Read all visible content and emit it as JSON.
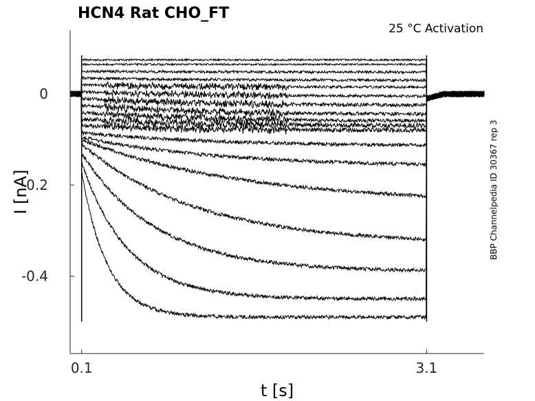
{
  "chart_data": {
    "type": "line",
    "title": "HCN4  Rat  CHO_FT",
    "annotation": "25 °C  Activation",
    "side_label": "BBP Channelpedia ID 30367 rep 3",
    "xlabel": "t [s]",
    "ylabel": "I [nA]",
    "xlim": [
      0.0,
      3.6
    ],
    "ylim": [
      -0.57,
      0.14
    ],
    "x_ticks": [
      "0.1",
      "3.1"
    ],
    "x_tick_values": [
      0.1,
      3.1
    ],
    "y_ticks": [
      "0",
      "-0.2",
      "-0.4"
    ],
    "y_tick_values": [
      0.0,
      -0.2,
      -0.4
    ],
    "grid": false,
    "legend": "none",
    "line_color": "#000000",
    "step_on": 0.1,
    "step_off": 3.1,
    "series": [
      {
        "initial": 0.075,
        "final": 0.075,
        "tau": 1.0,
        "noise": 0.002
      },
      {
        "initial": 0.065,
        "final": 0.065,
        "tau": 1.0,
        "noise": 0.002
      },
      {
        "initial": 0.05,
        "final": 0.048,
        "tau": 1.0,
        "noise": 0.003
      },
      {
        "initial": 0.035,
        "final": 0.03,
        "tau": 1.0,
        "noise": 0.003
      },
      {
        "initial": 0.02,
        "final": 0.015,
        "tau": 1.0,
        "noise": 0.003
      },
      {
        "initial": 0.005,
        "final": -0.005,
        "tau": 1.0,
        "noise": 0.003
      },
      {
        "initial": -0.01,
        "final": -0.025,
        "tau": 1.0,
        "noise": 0.004
      },
      {
        "initial": -0.025,
        "final": -0.045,
        "tau": 1.0,
        "noise": 0.004
      },
      {
        "initial": -0.04,
        "final": -0.06,
        "tau": 1.0,
        "noise": 0.004
      },
      {
        "initial": -0.055,
        "final": -0.07,
        "tau": 1.0,
        "noise": 0.005
      },
      {
        "initial": -0.07,
        "final": -0.08,
        "tau": 1.0,
        "noise": 0.005
      },
      {
        "initial": -0.085,
        "final": -0.115,
        "tau": 1.2,
        "noise": 0.004
      },
      {
        "initial": -0.095,
        "final": -0.16,
        "tau": 1.2,
        "noise": 0.004
      },
      {
        "initial": -0.1,
        "final": -0.24,
        "tau": 1.4,
        "noise": 0.004
      },
      {
        "initial": -0.11,
        "final": -0.33,
        "tau": 1.0,
        "noise": 0.004
      },
      {
        "initial": -0.13,
        "final": -0.39,
        "tau": 0.65,
        "noise": 0.004
      },
      {
        "initial": -0.15,
        "final": -0.45,
        "tau": 0.4,
        "noise": 0.004
      },
      {
        "initial": -0.17,
        "final": -0.49,
        "tau": 0.22,
        "noise": 0.004
      }
    ]
  }
}
